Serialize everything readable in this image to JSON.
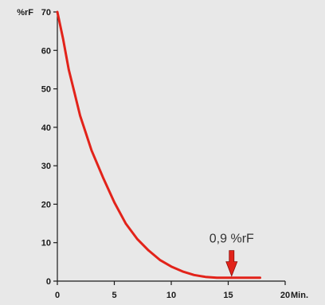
{
  "chart_data": {
    "type": "line",
    "title": "",
    "xlabel": "",
    "ylabel": "",
    "y_unit": "%rF",
    "x_unit": "Min.",
    "xlim": [
      0,
      20
    ],
    "ylim": [
      0,
      70
    ],
    "x_ticks": [
      0,
      5,
      10,
      15,
      20
    ],
    "y_ticks": [
      0,
      10,
      20,
      30,
      40,
      50,
      60,
      70
    ],
    "grid": false,
    "line_color": "#e2231a",
    "series": [
      {
        "x": [
          0,
          0.5,
          1,
          1.5,
          2,
          2.5,
          3,
          4,
          5,
          6,
          7,
          8,
          9,
          10,
          11,
          12,
          13,
          14,
          15,
          15.5,
          16,
          17,
          17.8
        ],
        "y": [
          70,
          63,
          55,
          49,
          43,
          38.5,
          34,
          27,
          20.5,
          15,
          11,
          8,
          5.5,
          3.8,
          2.5,
          1.6,
          1.1,
          0.9,
          0.9,
          0.9,
          0.9,
          0.9,
          0.9
        ]
      }
    ],
    "annotation": {
      "text": "0,9 %rF",
      "x": 15.3,
      "y": 0.9,
      "arrow_color": "#e2231a"
    }
  }
}
